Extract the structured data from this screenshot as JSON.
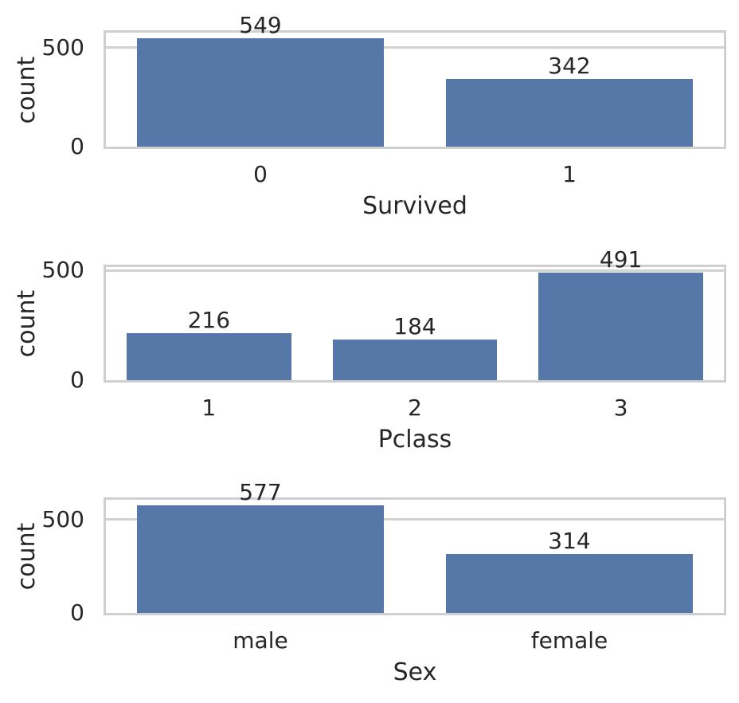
{
  "figure": {
    "background": "#ffffff",
    "bar_color": "#5578a8",
    "frame_color": "#cfcfcf",
    "grid_color": "#d2d2d2",
    "text_color": "#262626"
  },
  "chart_data": [
    {
      "type": "bar",
      "title": "",
      "xlabel": "Survived",
      "ylabel": "count",
      "categories": [
        "0",
        "1"
      ],
      "values": [
        549,
        342
      ],
      "bar_labels": [
        "549",
        "342"
      ],
      "ytick_labels": [
        "0",
        "500"
      ],
      "ytick_values": [
        0,
        500
      ],
      "ylim": [
        0,
        576.45
      ],
      "grid": true,
      "legend": "none"
    },
    {
      "type": "bar",
      "title": "",
      "xlabel": "Pclass",
      "ylabel": "count",
      "categories": [
        "1",
        "2",
        "3"
      ],
      "values": [
        216,
        184,
        491
      ],
      "bar_labels": [
        "216",
        "184",
        "491"
      ],
      "ytick_labels": [
        "0",
        "500"
      ],
      "ytick_values": [
        0,
        500
      ],
      "ylim": [
        0,
        515.55
      ],
      "grid": true,
      "legend": "none"
    },
    {
      "type": "bar",
      "title": "",
      "xlabel": "Sex",
      "ylabel": "count",
      "categories": [
        "male",
        "female"
      ],
      "values": [
        577,
        314
      ],
      "bar_labels": [
        "577",
        "314"
      ],
      "ytick_labels": [
        "0",
        "500"
      ],
      "ytick_values": [
        0,
        500
      ],
      "ylim": [
        0,
        605.85
      ],
      "grid": true,
      "legend": "none"
    }
  ]
}
